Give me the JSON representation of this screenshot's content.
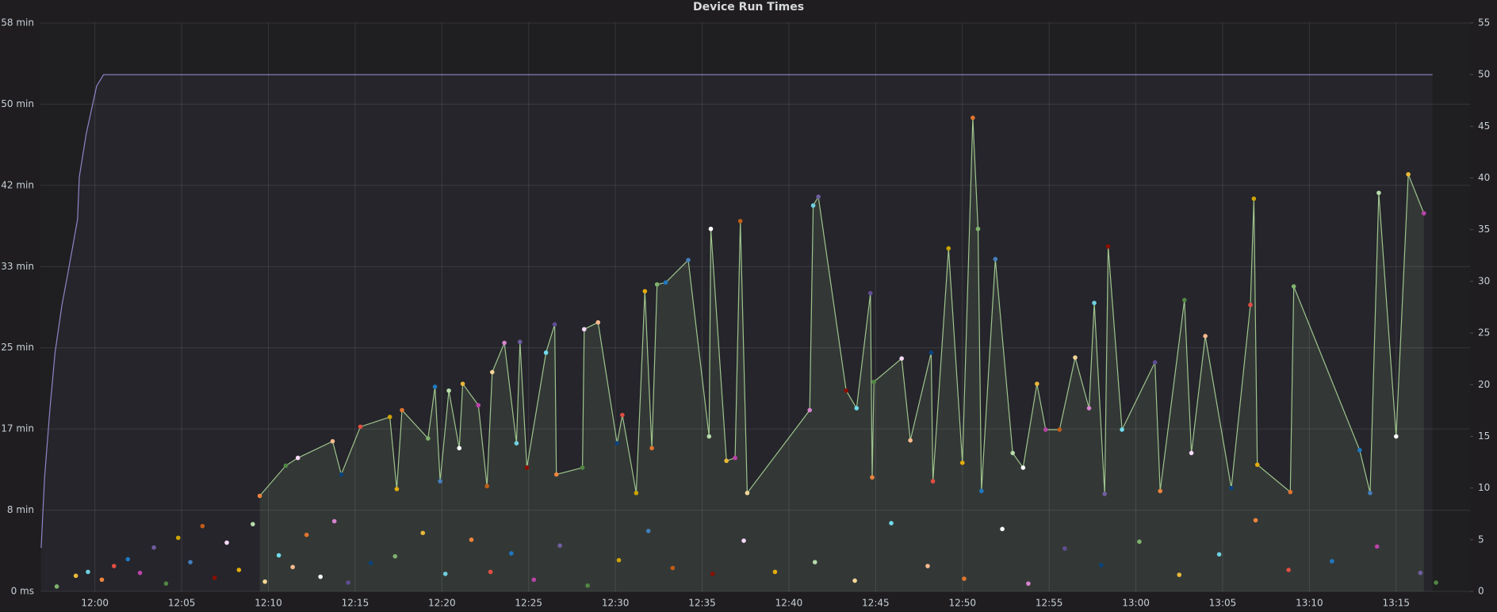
{
  "chart_data": {
    "type": "line",
    "title": "Device Run Times",
    "xlim": [
      716.86,
      799.26
    ],
    "xticks": [
      {
        "value": 720,
        "label": "12:00"
      },
      {
        "value": 725,
        "label": "12:05"
      },
      {
        "value": 730,
        "label": "12:10"
      },
      {
        "value": 735,
        "label": "12:15"
      },
      {
        "value": 740,
        "label": "12:20"
      },
      {
        "value": 745,
        "label": "12:25"
      },
      {
        "value": 750,
        "label": "12:30"
      },
      {
        "value": 755,
        "label": "12:35"
      },
      {
        "value": 760,
        "label": "12:40"
      },
      {
        "value": 765,
        "label": "12:45"
      },
      {
        "value": 770,
        "label": "12:50"
      },
      {
        "value": 775,
        "label": "12:55"
      },
      {
        "value": 780,
        "label": "13:00"
      },
      {
        "value": 785,
        "label": "13:05"
      },
      {
        "value": 790,
        "label": "13:10"
      },
      {
        "value": 795,
        "label": "13:15"
      }
    ],
    "ylim": [
      0,
      58.33
    ],
    "yticks": [
      {
        "value": 0,
        "label": "0 ms"
      },
      {
        "value": 8.33,
        "label": "8 min"
      },
      {
        "value": 16.67,
        "label": "17 min"
      },
      {
        "value": 25,
        "label": "25 min"
      },
      {
        "value": 33.33,
        "label": "33 min"
      },
      {
        "value": 41.67,
        "label": "42 min"
      },
      {
        "value": 50,
        "label": "50 min"
      },
      {
        "value": 58.33,
        "label": "58 min"
      }
    ],
    "y2lim": [
      0,
      55
    ],
    "y2ticks": [
      0,
      5,
      10,
      15,
      20,
      25,
      30,
      35,
      40,
      45,
      50,
      55
    ],
    "grid": true,
    "palette": [
      "#7eb26d",
      "#eab839",
      "#6ed0e0",
      "#ef843c",
      "#e24d42",
      "#1f78c1",
      "#ba43a9",
      "#705da0",
      "#508642",
      "#cca300",
      "#447ebc",
      "#c15c17",
      "#890f02",
      "#f9d9f9",
      "#e5ac0e",
      "#b7dbab",
      "#f4d598",
      "#70dbed",
      "#f9ba8f",
      "#e0752d",
      "#ffffff",
      "#d683ce",
      "#614d93",
      "#0a437c"
    ],
    "series": [
      {
        "color": "#8f86c8",
        "axis": "y2",
        "mode": "line",
        "x": [
          716.9,
          717.1,
          717.4,
          717.7,
          718.1,
          718.4,
          718.7,
          719.0,
          719.1,
          719.5,
          720.1,
          720.5,
          797.1
        ],
        "values": [
          4.2,
          11.1,
          17.5,
          23.1,
          27.7,
          30.4,
          33.2,
          36.0,
          40.1,
          44.3,
          48.9,
          50.0,
          50.0
        ]
      },
      {
        "color": "#9fc48d",
        "axis": "y",
        "mode": "line",
        "x": [
          729.5,
          731.0,
          731.7,
          733.7,
          734.2,
          735.3,
          737.0,
          737.4,
          737.7,
          739.2,
          739.6,
          739.9,
          740.4,
          741.0,
          741.2,
          742.1,
          742.6,
          742.9,
          743.6,
          744.3,
          744.5,
          744.9,
          746.0,
          746.5,
          746.6,
          748.1,
          748.2,
          749.0,
          750.1,
          750.4,
          751.2,
          751.7,
          752.1,
          752.4,
          752.9,
          754.2,
          755.4,
          755.5,
          756.4,
          756.9,
          757.2,
          757.6,
          761.2,
          761.4,
          761.7,
          763.3,
          763.9,
          764.7,
          764.8,
          764.9,
          766.5,
          767.0,
          768.2,
          768.3,
          769.2,
          770.0,
          770.6,
          770.9,
          771.1,
          771.9,
          772.9,
          773.5,
          774.3,
          774.8,
          775.6,
          776.5,
          777.3,
          777.6,
          778.2,
          778.4,
          779.2,
          781.1,
          781.4,
          782.8,
          783.2,
          784.0,
          785.5,
          786.6,
          786.8,
          787.0,
          788.9,
          789.1,
          792.9,
          793.5,
          794.0,
          795.0,
          795.7,
          796.6
        ],
        "values": [
          9.8,
          12.9,
          13.7,
          15.4,
          12.0,
          16.9,
          17.9,
          10.5,
          18.6,
          15.7,
          21.0,
          11.3,
          20.6,
          14.7,
          21.3,
          19.1,
          10.8,
          22.5,
          25.5,
          15.2,
          25.6,
          12.7,
          24.5,
          27.4,
          12.0,
          12.7,
          26.9,
          27.6,
          15.2,
          18.1,
          10.1,
          30.8,
          14.7,
          31.5,
          31.7,
          34.0,
          15.9,
          37.2,
          13.4,
          13.7,
          38.0,
          10.1,
          18.6,
          39.6,
          40.5,
          20.6,
          18.8,
          30.6,
          11.7,
          21.5,
          23.9,
          15.5,
          24.5,
          11.3,
          35.2,
          13.2,
          48.6,
          37.2,
          10.3,
          34.1,
          14.2,
          12.7,
          21.3,
          16.6,
          16.6,
          24.0,
          18.8,
          29.6,
          10.0,
          35.4,
          16.6,
          23.5,
          10.3,
          29.9,
          14.2,
          26.2,
          10.6,
          29.4,
          40.3,
          13.0,
          10.2,
          31.3,
          14.5,
          10.1,
          40.9,
          15.9,
          42.8,
          38.8
        ]
      },
      {
        "axis": "y",
        "mode": "points",
        "x": [
          717.8,
          718.9,
          719.6,
          720.4,
          721.1,
          721.9,
          722.6,
          723.4,
          724.1,
          724.8,
          725.5,
          726.2,
          726.9,
          727.6,
          728.3,
          729.1,
          729.8,
          730.6,
          731.4,
          732.2,
          733.0,
          733.8,
          734.6,
          735.9,
          737.3,
          738.9,
          740.2,
          741.7,
          742.8,
          744.0,
          745.3,
          746.8,
          748.4,
          750.2,
          751.9,
          753.3,
          755.6,
          757.4,
          759.2,
          761.5,
          763.8,
          765.9,
          768.0,
          770.1,
          772.3,
          773.8,
          775.9,
          778.0,
          780.2,
          782.5,
          784.8,
          786.9,
          788.8,
          791.3,
          793.9,
          796.4,
          797.3
        ],
        "values": [
          0.5,
          1.6,
          2.0,
          1.2,
          2.6,
          3.3,
          1.9,
          4.5,
          0.8,
          5.5,
          3.0,
          6.7,
          1.4,
          5.0,
          2.2,
          6.9,
          1.0,
          3.7,
          2.5,
          5.8,
          1.5,
          7.2,
          0.9,
          2.9,
          3.6,
          6.0,
          1.8,
          5.3,
          2.0,
          3.9,
          1.2,
          4.7,
          0.6,
          3.2,
          6.2,
          2.4,
          1.8,
          5.2,
          2.0,
          3.0,
          1.1,
          7.0,
          2.6,
          1.3,
          6.4,
          0.8,
          4.4,
          2.7,
          5.1,
          1.7,
          3.8,
          7.3,
          2.2,
          3.1,
          4.6,
          1.9,
          0.9
        ]
      }
    ]
  }
}
